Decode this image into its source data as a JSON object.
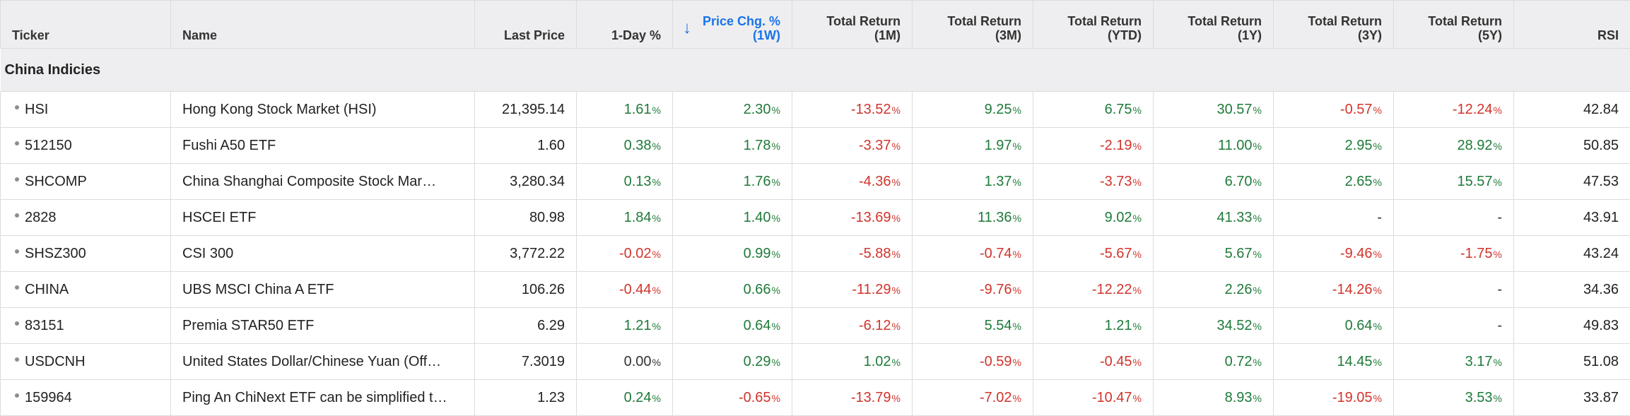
{
  "columns": [
    {
      "key": "ticker",
      "lines": [
        "Ticker"
      ]
    },
    {
      "key": "name",
      "lines": [
        "Name"
      ]
    },
    {
      "key": "last",
      "lines": [
        "Last Price"
      ]
    },
    {
      "key": "d1",
      "lines": [
        "1-Day %"
      ]
    },
    {
      "key": "w1",
      "lines": [
        "Price Chg. %",
        "(1W)"
      ]
    },
    {
      "key": "m1",
      "lines": [
        "Total Return",
        "(1M)"
      ]
    },
    {
      "key": "m3",
      "lines": [
        "Total Return",
        "(3M)"
      ]
    },
    {
      "key": "ytd",
      "lines": [
        "Total Return",
        "(YTD)"
      ]
    },
    {
      "key": "y1",
      "lines": [
        "Total Return",
        "(1Y)"
      ]
    },
    {
      "key": "y3",
      "lines": [
        "Total Return",
        "(3Y)"
      ]
    },
    {
      "key": "y5",
      "lines": [
        "Total Return",
        "(5Y)"
      ]
    },
    {
      "key": "rsi",
      "lines": [
        "RSI"
      ]
    }
  ],
  "sort": {
    "column": "w1",
    "direction": "descending",
    "icon": "arrow-down-icon"
  },
  "colors": {
    "positive": "#1f7a3a",
    "negative": "#d0342c",
    "accent": "#1a73e8",
    "header_bg": "#eeeef0"
  },
  "group": {
    "label": "China Indicies"
  },
  "rows": [
    {
      "ticker": "HSI",
      "name": "Hong Kong Stock Market (HSI)",
      "last": "21,395.14",
      "d1": "1.61",
      "w1": "2.30",
      "m1": "-13.52",
      "m3": "9.25",
      "ytd": "6.75",
      "y1": "30.57",
      "y3": "-0.57",
      "y5": "-12.24",
      "rsi": "42.84"
    },
    {
      "ticker": "512150",
      "name": "Fushi A50 ETF",
      "last": "1.60",
      "d1": "0.38",
      "w1": "1.78",
      "m1": "-3.37",
      "m3": "1.97",
      "ytd": "-2.19",
      "y1": "11.00",
      "y3": "2.95",
      "y5": "28.92",
      "rsi": "50.85"
    },
    {
      "ticker": "SHCOMP",
      "name": "China Shanghai Composite Stock Mar…",
      "last": "3,280.34",
      "d1": "0.13",
      "w1": "1.76",
      "m1": "-4.36",
      "m3": "1.37",
      "ytd": "-3.73",
      "y1": "6.70",
      "y3": "2.65",
      "y5": "15.57",
      "rsi": "47.53"
    },
    {
      "ticker": "2828",
      "name": "HSCEI ETF",
      "last": "80.98",
      "d1": "1.84",
      "w1": "1.40",
      "m1": "-13.69",
      "m3": "11.36",
      "ytd": "9.02",
      "y1": "41.33",
      "y3": "-",
      "y5": "-",
      "rsi": "43.91"
    },
    {
      "ticker": "SHSZ300",
      "name": "CSI 300",
      "last": "3,772.22",
      "d1": "-0.02",
      "w1": "0.99",
      "m1": "-5.88",
      "m3": "-0.74",
      "ytd": "-5.67",
      "y1": "5.67",
      "y3": "-9.46",
      "y5": "-1.75",
      "rsi": "43.24"
    },
    {
      "ticker": "CHINA",
      "name": "UBS MSCI China A ETF",
      "last": "106.26",
      "d1": "-0.44",
      "w1": "0.66",
      "m1": "-11.29",
      "m3": "-9.76",
      "ytd": "-12.22",
      "y1": "2.26",
      "y3": "-14.26",
      "y5": "-",
      "rsi": "34.36"
    },
    {
      "ticker": "83151",
      "name": "Premia STAR50 ETF",
      "last": "6.29",
      "d1": "1.21",
      "w1": "0.64",
      "m1": "-6.12",
      "m3": "5.54",
      "ytd": "1.21",
      "y1": "34.52",
      "y3": "0.64",
      "y5": "-",
      "rsi": "49.83"
    },
    {
      "ticker": "USDCNH",
      "name": "United States Dollar/Chinese Yuan (Off…",
      "last": "7.3019",
      "d1": "0.00",
      "w1": "0.29",
      "m1": "1.02",
      "m3": "-0.59",
      "ytd": "-0.45",
      "y1": "0.72",
      "y3": "14.45",
      "y5": "3.17",
      "rsi": "51.08"
    },
    {
      "ticker": "159964",
      "name": "Ping An ChiNext ETF can be simplified t…",
      "last": "1.23",
      "d1": "0.24",
      "w1": "-0.65",
      "m1": "-13.79",
      "m3": "-7.02",
      "ytd": "-10.47",
      "y1": "8.93",
      "y3": "-19.05",
      "y5": "3.53",
      "rsi": "33.87"
    }
  ]
}
